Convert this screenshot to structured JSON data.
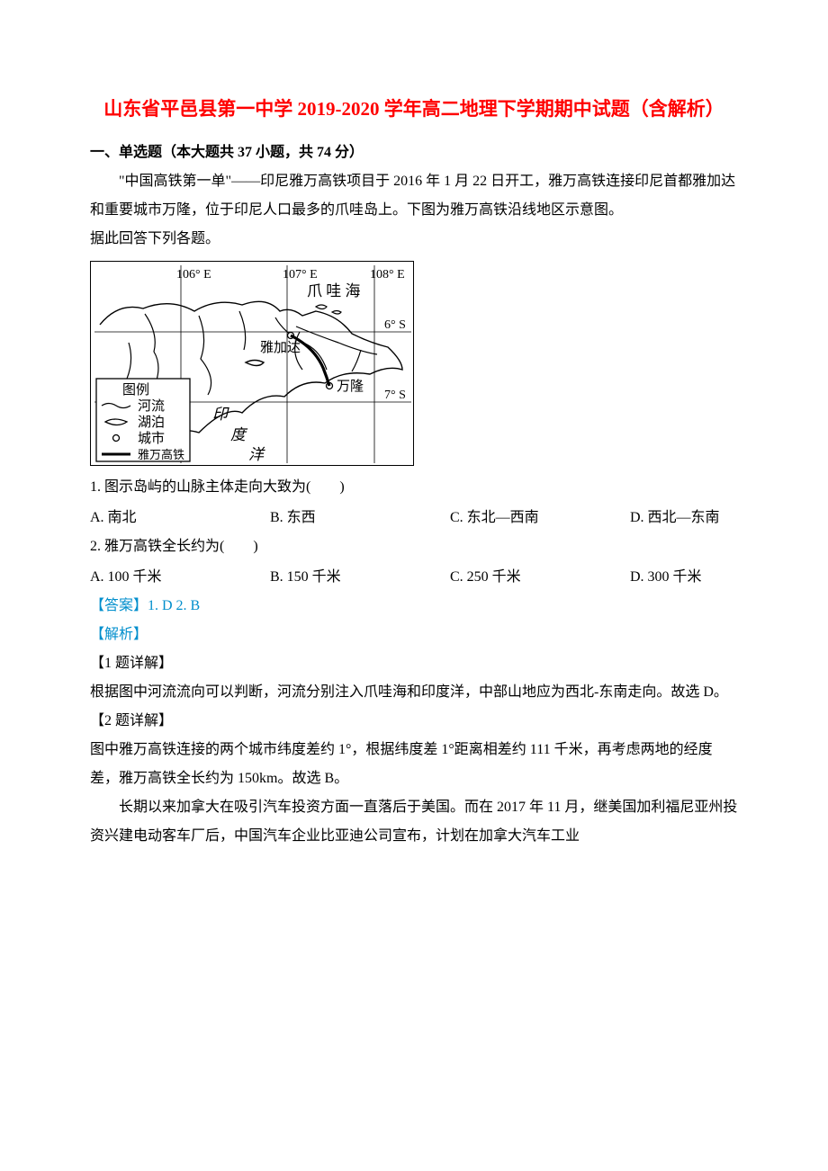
{
  "doc_title": "山东省平邑县第一中学 2019-2020 学年高二地理下学期期中试题（含解析）",
  "section1": "一、单选题（本大题共 37 小题，共 74 分）",
  "intro1": "\"中国高铁第一单\"——印尼雅万高铁项目于 2016 年 1 月 22 日开工，雅万高铁连接印尼首都雅加达和重要城市万隆，位于印尼人口最多的爪哇岛上。下图为雅万高铁沿线地区示意图。",
  "intro1_instr": "据此回答下列各题。",
  "map": {
    "lon_labels": [
      "106° E",
      "107° E",
      "108° E"
    ],
    "lon_x": [
      95,
      213,
      310
    ],
    "lat_labels": [
      "6° S",
      "7° S"
    ],
    "lat_y": [
      74,
      152
    ],
    "sea_label": "爪 哇 海",
    "city1": "雅加达",
    "city2": "万隆",
    "ocean_label1": "印",
    "ocean_label2": "度",
    "ocean_label3": "洋",
    "legend_title": "图例",
    "legend_river": "河流",
    "legend_lake": "湖泊",
    "legend_city": "城市",
    "legend_rail": "雅万高铁",
    "colors": {
      "border": "#000000",
      "line": "#000000",
      "text": "#000000",
      "bg": "#ffffff"
    },
    "lon_line_x": [
      100,
      218,
      315
    ],
    "lat_line_y": [
      78,
      156
    ]
  },
  "q1": {
    "stem": "1. 图示岛屿的山脉主体走向大致为(　　)",
    "a": "A. 南北",
    "b": "B. 东西",
    "c": "C. 东北—西南",
    "d": "D. 西北—东南"
  },
  "q2": {
    "stem": "2. 雅万高铁全长约为(　　)",
    "a": "A. 100 千米",
    "b": "B. 150 千米",
    "c": "C. 250 千米",
    "d": "D. 300 千米"
  },
  "answers": "【答案】1. D    2. B",
  "analysis_label": "【解析】",
  "a1_label": "【1 题详解】",
  "a1_body": "根据图中河流流向可以判断，河流分别注入爪哇海和印度洋，中部山地应为西北-东南走向。故选 D。",
  "a2_label": "【2 题详解】",
  "a2_body": "图中雅万高铁连接的两个城市纬度差约 1°，根据纬度差 1°距离相差约 111 千米，再考虑两地的经度差，雅万高铁全长约为 150km。故选 B。",
  "passage2": "长期以来加拿大在吸引汽车投资方面一直落后于美国。而在 2017 年 11 月，继美国加利福尼亚州投资兴建电动客车厂后，中国汽车企业比亚迪公司宣布，计划在加拿大汽车工业"
}
